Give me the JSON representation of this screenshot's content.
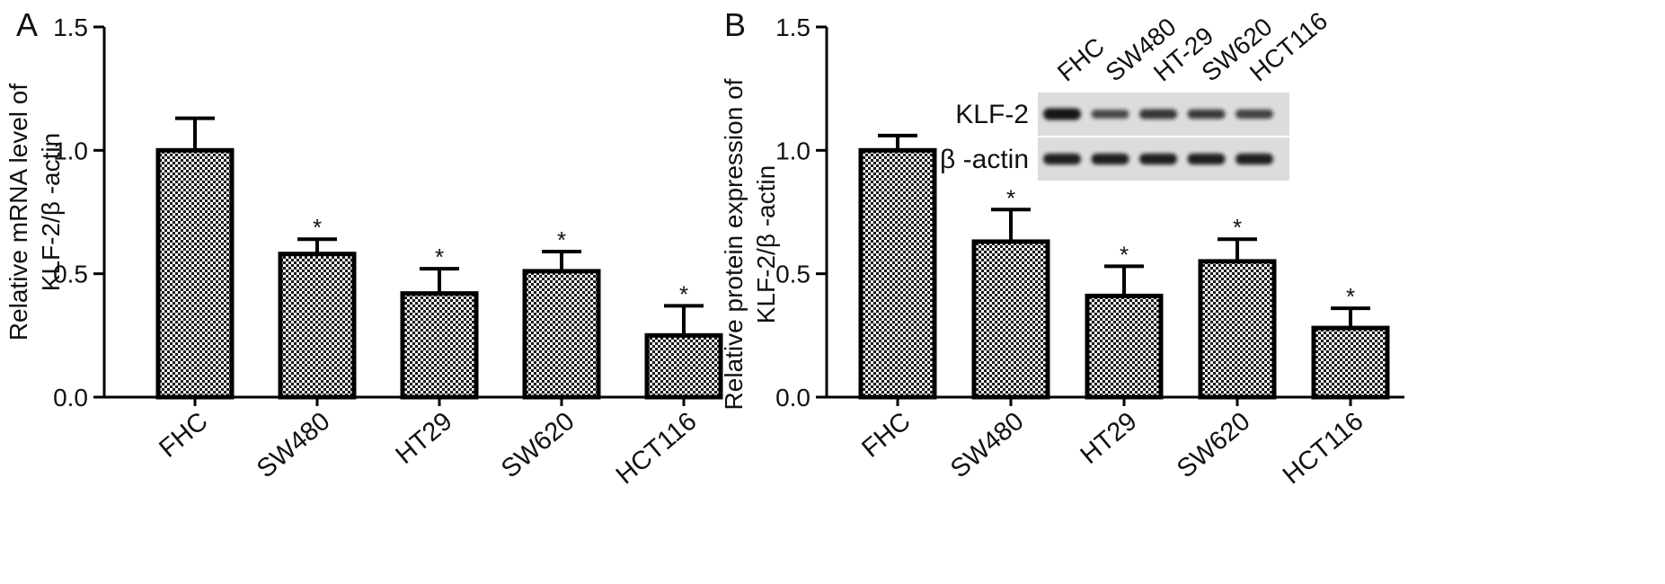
{
  "chart_data": [
    {
      "panel": "A",
      "type": "bar",
      "categories": [
        "FHC",
        "SW480",
        "HT29",
        "SW620",
        "HCT116"
      ],
      "values": [
        1.0,
        0.58,
        0.42,
        0.51,
        0.25
      ],
      "errors": [
        0.13,
        0.06,
        0.1,
        0.08,
        0.12
      ],
      "significance": [
        "",
        "*",
        "*",
        "*",
        "*"
      ],
      "ylabel_lines": [
        "Relative mRNA level of",
        "KLF-2/β -actin"
      ],
      "ylim": [
        0,
        1.5
      ],
      "yticks": [
        "0.0",
        "0.5",
        "1.0",
        "1.5"
      ],
      "grid": false
    },
    {
      "panel": "B",
      "type": "bar",
      "categories": [
        "FHC",
        "SW480",
        "HT29",
        "SW620",
        "HCT116"
      ],
      "values": [
        1.0,
        0.63,
        0.41,
        0.55,
        0.28
      ],
      "errors": [
        0.06,
        0.13,
        0.12,
        0.09,
        0.08
      ],
      "significance": [
        "",
        "*",
        "*",
        "*",
        "*"
      ],
      "ylabel_lines": [
        "Relative protein expression of",
        "KLF-2/β -actin"
      ],
      "ylim": [
        0,
        1.5
      ],
      "yticks": [
        "0.0",
        "0.5",
        "1.0",
        "1.5"
      ],
      "grid": false
    }
  ],
  "blot": {
    "lanes": [
      "FHC",
      "SW480",
      "HT-29",
      "SW620",
      "HCT116"
    ],
    "rows": [
      {
        "label": "KLF-2",
        "intensity": [
          1.0,
          0.55,
          0.7,
          0.65,
          0.6
        ]
      },
      {
        "label": "β -actin",
        "intensity": [
          0.9,
          0.9,
          0.9,
          0.9,
          0.9
        ]
      }
    ]
  },
  "colors": {
    "bar_fill_a": "#ffffff",
    "bar_fill_b": "#1a1a1a",
    "stroke": "#000000",
    "blot_bg": "#dcdcdc",
    "blot_band": "#141414"
  }
}
